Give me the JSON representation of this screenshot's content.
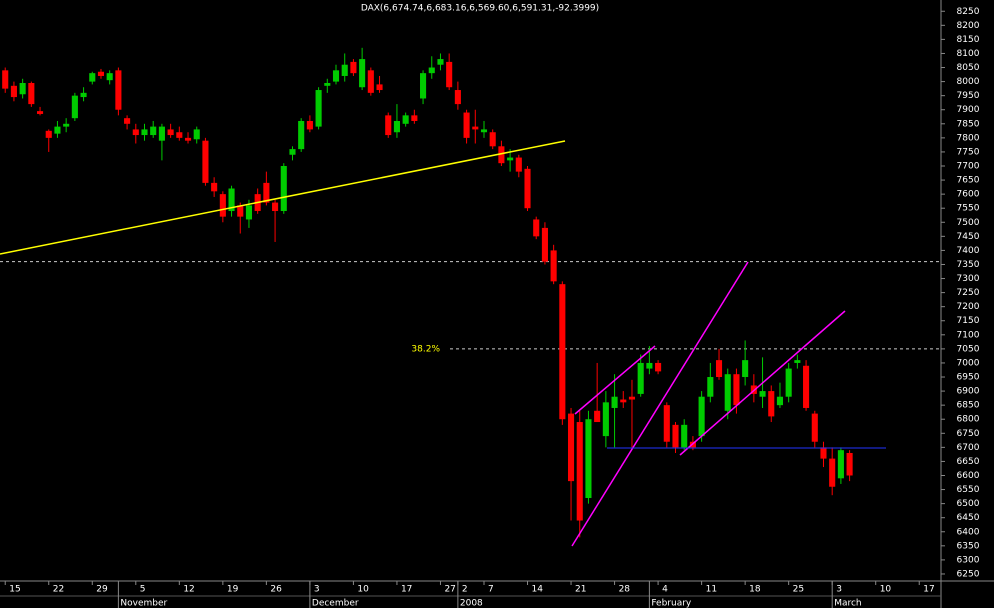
{
  "chart_data": {
    "type": "candlestick",
    "title": "DAX(6,674.74,6,683.16,6,569.60,6,591.31,-92.3999)",
    "up_color": "#00cc00",
    "down_color": "#ff0000",
    "open": [
      8040,
      7985,
      7955,
      7995,
      7895,
      7825,
      7815,
      7840,
      7870,
      7945,
      8000,
      8035,
      8005,
      8040,
      7870,
      7830,
      7810,
      7810,
      7790,
      7830,
      7820,
      7800,
      7795,
      7790,
      7640,
      7600,
      7540,
      7560,
      7510,
      7600,
      7640,
      7570,
      7540,
      7740,
      7760,
      7860,
      7840,
      7985,
      8000,
      8020,
      8070,
      7980,
      8040,
      7990,
      7880,
      7820,
      7850,
      7880,
      7940,
      8030,
      8060,
      8070,
      7970,
      7890,
      7840,
      7820,
      7820,
      7770,
      7720,
      7730,
      7690,
      7510,
      7480,
      7400,
      7280,
      6820,
      6790,
      6520,
      6830,
      6740,
      6840,
      6870,
      6880,
      6890,
      6980,
      7000,
      6850,
      6780,
      6700,
      6720,
      6740,
      6880,
      7010,
      6830,
      6960,
      6950,
      6920,
      6880,
      6900,
      6850,
      6880,
      7000,
      6990,
      6820,
      6700,
      6660,
      6590,
      6680
    ],
    "high": [
      8050,
      8000,
      8010,
      8000,
      7910,
      7830,
      7860,
      7870,
      7960,
      7980,
      8035,
      8045,
      8040,
      8050,
      7880,
      7850,
      7850,
      7860,
      7850,
      7850,
      7840,
      7820,
      7840,
      7800,
      7660,
      7610,
      7630,
      7570,
      7580,
      7620,
      7680,
      7580,
      7710,
      7770,
      7870,
      7880,
      7980,
      8010,
      8060,
      8100,
      8080,
      8120,
      8050,
      8020,
      7890,
      7920,
      7890,
      7900,
      8040,
      8090,
      8100,
      8100,
      8000,
      7900,
      7900,
      7860,
      7830,
      7790,
      7760,
      7740,
      7700,
      7520,
      7500,
      7420,
      7290,
      6840,
      6830,
      6830,
      7000,
      6900,
      6960,
      6900,
      6940,
      7030,
      7060,
      7010,
      6860,
      6790,
      6800,
      6740,
      6900,
      7000,
      7050,
      6980,
      6980,
      7080,
      6960,
      7020,
      6920,
      6930,
      7000,
      7030,
      7010,
      6830,
      6720,
      6700,
      6700,
      6690
    ],
    "low": [
      7960,
      7930,
      7940,
      7910,
      7880,
      7750,
      7800,
      7820,
      7860,
      7930,
      7990,
      8010,
      7990,
      7880,
      7830,
      7780,
      7790,
      7800,
      7720,
      7800,
      7790,
      7780,
      7780,
      7630,
      7590,
      7500,
      7520,
      7460,
      7480,
      7530,
      7560,
      7430,
      7530,
      7720,
      7750,
      7820,
      7830,
      7960,
      7990,
      8000,
      8020,
      7970,
      7950,
      7960,
      7800,
      7800,
      7840,
      7850,
      7920,
      8010,
      8040,
      7970,
      7900,
      7780,
      7780,
      7800,
      7760,
      7700,
      7680,
      7660,
      7540,
      7440,
      7350,
      7280,
      6780,
      6440,
      6380,
      6500,
      6800,
      6700,
      6700,
      6840,
      6700,
      6880,
      6960,
      6960,
      6700,
      6680,
      6690,
      6690,
      6720,
      6860,
      6940,
      6800,
      6820,
      6920,
      6860,
      6840,
      6790,
      6840,
      6860,
      6980,
      6830,
      6700,
      6630,
      6530,
      6570,
      6580
    ],
    "close": [
      7975,
      7945,
      7995,
      7920,
      7885,
      7800,
      7840,
      7850,
      7950,
      7960,
      8030,
      8020,
      8030,
      7900,
      7850,
      7810,
      7830,
      7840,
      7840,
      7810,
      7800,
      7790,
      7830,
      7640,
      7610,
      7520,
      7620,
      7520,
      7560,
      7540,
      7570,
      7540,
      7700,
      7760,
      7860,
      7830,
      7970,
      7995,
      8040,
      8060,
      8030,
      8080,
      7960,
      7970,
      7810,
      7860,
      7880,
      7860,
      8030,
      8050,
      8080,
      7980,
      7920,
      7800,
      7830,
      7830,
      7770,
      7710,
      7730,
      7680,
      7550,
      7450,
      7360,
      7290,
      6800,
      6580,
      6440,
      6800,
      6790,
      6860,
      6880,
      6860,
      6870,
      7000,
      7000,
      6970,
      6720,
      6700,
      6780,
      6700,
      6880,
      6950,
      6950,
      6960,
      6850,
      7010,
      6890,
      6900,
      6810,
      6880,
      6980,
      7010,
      6840,
      6720,
      6660,
      6560,
      6690,
      6600
    ],
    "xlim": [
      -0.6,
      107.5
    ],
    "xticks": [
      {
        "value": 0,
        "label": "15"
      },
      {
        "value": 5,
        "label": "22"
      },
      {
        "value": 10,
        "label": "29"
      },
      {
        "value": 15,
        "label": "5"
      },
      {
        "value": 20,
        "label": "12"
      },
      {
        "value": 25,
        "label": "19"
      },
      {
        "value": 30,
        "label": "26"
      },
      {
        "value": 35,
        "label": "3"
      },
      {
        "value": 40,
        "label": "10"
      },
      {
        "value": 45,
        "label": "17"
      },
      {
        "value": 50,
        "label": "27"
      },
      {
        "value": 52,
        "label": "2"
      },
      {
        "value": 55,
        "label": "7"
      },
      {
        "value": 60,
        "label": "14"
      },
      {
        "value": 65,
        "label": "21"
      },
      {
        "value": 70,
        "label": "28"
      },
      {
        "value": 75,
        "label": "4"
      },
      {
        "value": 80,
        "label": "11"
      },
      {
        "value": 85,
        "label": "18"
      },
      {
        "value": 90,
        "label": "25"
      },
      {
        "value": 95,
        "label": "3"
      },
      {
        "value": 100,
        "label": "10"
      },
      {
        "value": 105,
        "label": "17"
      }
    ],
    "months": [
      {
        "value": 13,
        "label": "November"
      },
      {
        "value": 35,
        "label": "December"
      },
      {
        "value": 52,
        "label": "2008"
      },
      {
        "value": 74,
        "label": "February"
      },
      {
        "value": 95,
        "label": "March"
      }
    ],
    "ylim": [
      6225,
      8290
    ],
    "yticks": [
      6250,
      6300,
      6350,
      6400,
      6450,
      6500,
      6550,
      6600,
      6650,
      6700,
      6750,
      6800,
      6850,
      6900,
      6950,
      7000,
      7050,
      7100,
      7150,
      7200,
      7250,
      7300,
      7350,
      7400,
      7450,
      7500,
      7550,
      7600,
      7650,
      7700,
      7750,
      7800,
      7850,
      7900,
      7950,
      8000,
      8050,
      8100,
      8150,
      8200,
      8250
    ],
    "reference_lines": [
      {
        "value": 7360
      },
      {
        "value": 7050,
        "label": "38.2%"
      }
    ]
  }
}
